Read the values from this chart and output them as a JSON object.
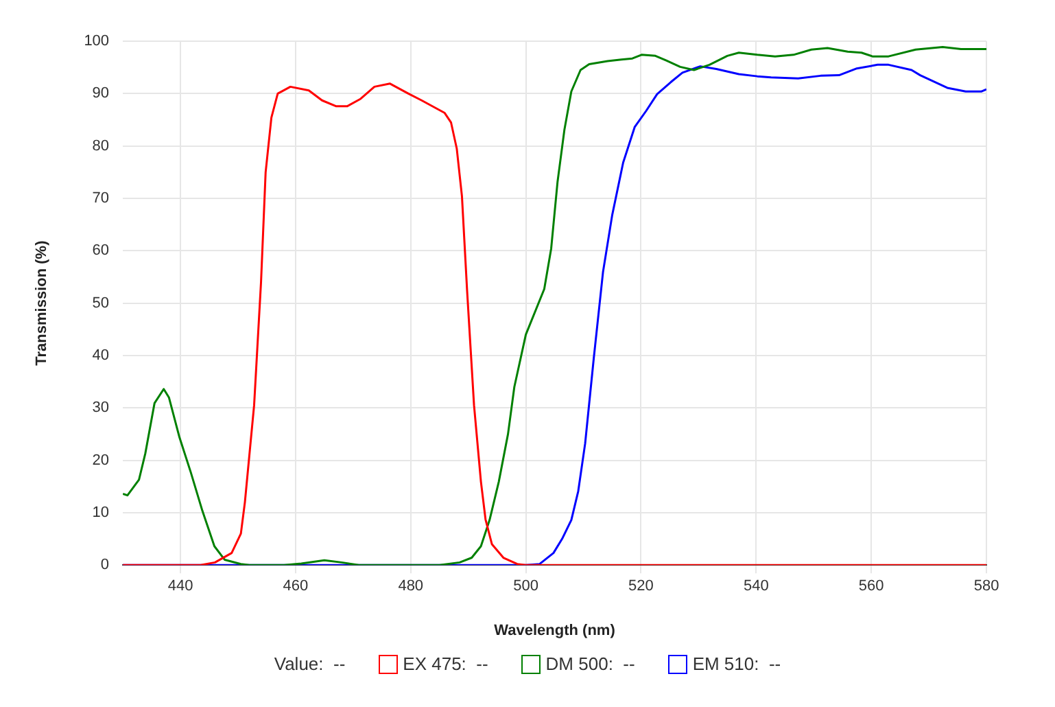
{
  "chart_data": {
    "type": "line",
    "xlabel": "Wavelength (nm)",
    "ylabel": "Transmission (%)",
    "xlim": [
      430,
      580
    ],
    "xticks": [
      440,
      460,
      480,
      500,
      520,
      540,
      560,
      580
    ],
    "ylim": [
      0,
      100
    ],
    "yticks": [
      0,
      10,
      20,
      30,
      40,
      50,
      60,
      70,
      80,
      90,
      100
    ],
    "grid": true,
    "legend": "bottom",
    "marker": "none",
    "line_style": "solid",
    "annotations": [
      "Value:  --"
    ],
    "series": [
      {
        "name": "EX 475:  --",
        "color": "#ff0000",
        "x": [
          430,
          443.5,
          446,
          448.9,
          450.5,
          451.2,
          452.8,
          454,
          454.8,
          455.8,
          456.9,
          459.1,
          462.3,
          464.6,
          467,
          469,
          471.3,
          473.7,
          476.4,
          479.6,
          481.9,
          485.9,
          487,
          488,
          488.9,
          489.8,
          491,
          492.2,
          493,
          494.1,
          496.1,
          498.5,
          500,
          580
        ],
        "values": [
          0,
          0,
          0.5,
          2.3,
          6,
          12,
          30.5,
          54,
          75,
          85.4,
          90,
          91.3,
          90.6,
          88.7,
          87.6,
          87.6,
          89,
          91.3,
          91.9,
          90,
          88.7,
          86.3,
          84.5,
          79.5,
          70.4,
          52.3,
          30.5,
          15.9,
          8.7,
          4,
          1.4,
          0.2,
          0,
          0
        ]
      },
      {
        "name": "DM 500:  --",
        "color": "#008000",
        "x": [
          430,
          430.8,
          432.8,
          433.9,
          435.5,
          437.1,
          438,
          439.8,
          441.8,
          443.8,
          445.9,
          447.7,
          450.5,
          452,
          458,
          461,
          465,
          468,
          471,
          485,
          488.5,
          490.6,
          492.2,
          493.7,
          495.3,
          496.9,
          498,
          500,
          503.2,
          504.4,
          505.5,
          506.7,
          507.9,
          509.5,
          511,
          514.2,
          516.6,
          518.5,
          520.1,
          522.5,
          524.4,
          526.8,
          529.2,
          531.9,
          535,
          537,
          540.2,
          543.3,
          546.5,
          549.6,
          552.4,
          555.9,
          558.3,
          560.2,
          563,
          567.7,
          572.4,
          575.6,
          580
        ],
        "values": [
          13.6,
          13.3,
          16.3,
          21.3,
          30.9,
          33.6,
          32,
          24.5,
          17.7,
          10.4,
          3.6,
          1,
          0.2,
          0,
          0,
          0.3,
          0.9,
          0.5,
          0,
          0,
          0.5,
          1.4,
          3.6,
          8.6,
          15.9,
          25,
          34,
          44,
          52.7,
          60.4,
          73.1,
          83.1,
          90.4,
          94.5,
          95.6,
          96.2,
          96.5,
          96.7,
          97.4,
          97.2,
          96.3,
          95.1,
          94.5,
          95.5,
          97.2,
          97.8,
          97.4,
          97.1,
          97.4,
          98.4,
          98.7,
          98,
          97.8,
          97.1,
          97.1,
          98.4,
          98.9,
          98.5,
          98.5
        ]
      },
      {
        "name": "EM 510:  --",
        "color": "#0000ff",
        "x": [
          430,
          500,
          502.4,
          504.8,
          506.3,
          507.9,
          509.1,
          510.3,
          511.8,
          513.4,
          515,
          516.9,
          518.9,
          520.9,
          522.8,
          525.2,
          527.2,
          530.3,
          533.1,
          537,
          540.2,
          542.6,
          547.3,
          551.2,
          554.4,
          557.5,
          561.1,
          563,
          567,
          568.5,
          573.2,
          576.4,
          579.1,
          580
        ],
        "values": [
          0,
          0,
          0.2,
          2.3,
          5,
          8.6,
          14.1,
          23.2,
          39.5,
          55.9,
          66.8,
          76.8,
          83.6,
          86.7,
          89.9,
          92.2,
          94,
          95.2,
          94.7,
          93.7,
          93.3,
          93.1,
          92.9,
          93.4,
          93.5,
          94.8,
          95.5,
          95.5,
          94.5,
          93.5,
          91.1,
          90.4,
          90.4,
          90.8
        ]
      }
    ]
  }
}
